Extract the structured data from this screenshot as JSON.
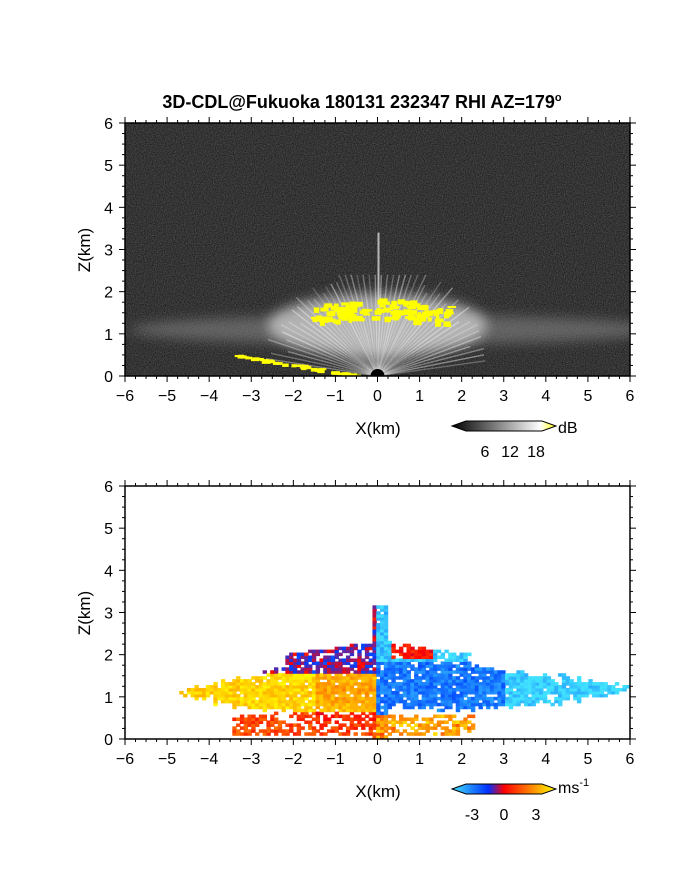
{
  "title": "3D-CDL@Fukuoka 180131 232347 RHI AZ=179",
  "title_superscript": "o",
  "colors": {
    "frame": "#000000",
    "power_background": "#0c0c0c",
    "power_highlight": "#ffff00",
    "velocity_negative_strong": "#1040ff",
    "velocity_negative_weak": "#40c8ff",
    "velocity_zero": "#ff2000",
    "velocity_positive": "#ffe000"
  },
  "chart_data": [
    {
      "type": "heatmap",
      "name": "power",
      "xlabel": "X(km)",
      "ylabel": "Z(km)",
      "xlim": [
        -6,
        6
      ],
      "ylim": [
        0,
        6
      ],
      "xticks": [
        "-6",
        "-5",
        "-4",
        "-3",
        "-2",
        "-1",
        "0",
        "1",
        "2",
        "3",
        "4",
        "5",
        "6"
      ],
      "yticks": [
        "0",
        "1",
        "2",
        "3",
        "4",
        "5",
        "6"
      ],
      "grid": false,
      "colorbar": {
        "unit": "dB",
        "ticks": [
          "6",
          "12",
          "18"
        ],
        "range": [
          0,
          20
        ],
        "colors": [
          "#000000",
          "#ffffff",
          "#ffff00"
        ]
      },
      "features": {
        "echo_top_km": 3.4,
        "bright_layer_z_km": [
          1.2,
          1.8
        ],
        "bright_layer_x_km": [
          -1.6,
          1.7
        ],
        "low_level_return_x_km": [
          -3.4,
          -0.5
        ]
      }
    },
    {
      "type": "heatmap",
      "name": "velocity",
      "xlabel": "X(km)",
      "ylabel": "Z(km)",
      "xlim": [
        -6,
        6
      ],
      "ylim": [
        0,
        6
      ],
      "xticks": [
        "-6",
        "-5",
        "-4",
        "-3",
        "-2",
        "-1",
        "0",
        "1",
        "2",
        "3",
        "4",
        "5",
        "6"
      ],
      "yticks": [
        "0",
        "1",
        "2",
        "3",
        "4",
        "5",
        "6"
      ],
      "grid": false,
      "colorbar": {
        "unit": "ms",
        "unit_superscript": "-1",
        "ticks": [
          "-3",
          "0",
          "3"
        ],
        "range": [
          -4,
          4
        ],
        "colors": [
          "#40e0ff",
          "#0030ff",
          "#ff0000",
          "#ffff00"
        ]
      },
      "features": {
        "positive_region_x_km": [
          -4.6,
          0
        ],
        "negative_region_x_km": [
          0,
          6
        ],
        "layer_center_z_km": 1.2,
        "echo_top_km": 3.2
      }
    }
  ]
}
